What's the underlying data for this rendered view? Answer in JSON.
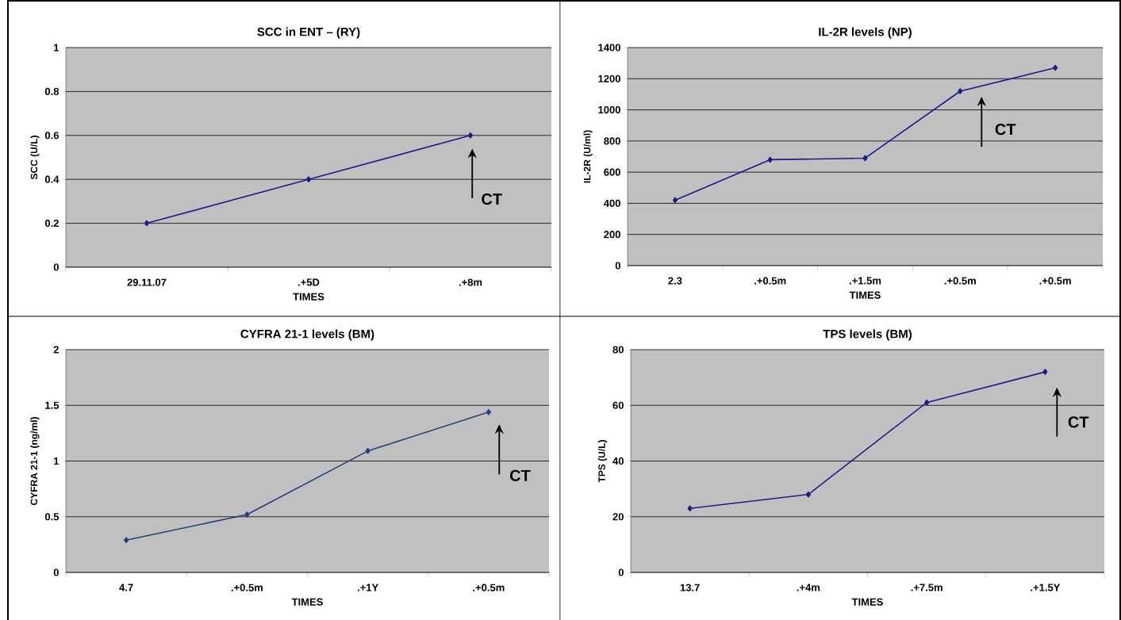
{
  "chart_data": [
    {
      "type": "line",
      "title": "SCC in ENT – (RY)",
      "xlabel": "TIMES",
      "ylabel": "SCC (U/L)",
      "categories": [
        "29.11.07",
        ".+5D",
        ".+8m"
      ],
      "values": [
        0.2,
        0.4,
        0.6
      ],
      "color": "#1c1c8c",
      "ylim": [
        0,
        1
      ],
      "yticks": [
        0,
        0.2,
        0.4,
        0.6,
        0.8,
        1
      ],
      "grid": "y",
      "marker": "diamond",
      "annotations": [
        "CT"
      ]
    },
    {
      "type": "line",
      "title": "IL-2R levels (NP)",
      "xlabel": "TIMES",
      "ylabel": "IL-2R (U/ml)",
      "categories": [
        "2.3",
        ".+0.5m",
        ".+1.5m",
        ".+0.5m",
        ".+0.5m"
      ],
      "values": [
        420,
        680,
        690,
        1120,
        1270
      ],
      "color": "#1c1c8c",
      "ylim": [
        0,
        1400
      ],
      "yticks": [
        0,
        200,
        400,
        600,
        800,
        1000,
        1200,
        1400
      ],
      "grid": "y",
      "marker": "diamond",
      "annotations": [
        "CT"
      ]
    },
    {
      "type": "line",
      "title": "CYFRA 21-1 levels (BM)",
      "xlabel": "TIMES",
      "ylabel": "CYFRA 21-1 (ng/ml)",
      "categories": [
        "4.7",
        ".+0.5m",
        ".+1Y",
        ".+0.5m"
      ],
      "values": [
        0.29,
        0.52,
        1.09,
        1.44
      ],
      "color": "#26407a",
      "ylim": [
        0,
        2
      ],
      "yticks": [
        0,
        0.5,
        1,
        1.5,
        2
      ],
      "grid": "y",
      "marker": "diamond",
      "annotations": [
        "CT"
      ]
    },
    {
      "type": "line",
      "title": "TPS levels (BM)",
      "xlabel": "TIMES",
      "ylabel": "TPS (U/L)",
      "categories": [
        "13.7",
        ".+4m",
        ".+7.5m",
        ".+1.5Y"
      ],
      "values": [
        23,
        28,
        61,
        72
      ],
      "color": "#1c1c8c",
      "ylim": [
        0,
        80
      ],
      "yticks": [
        0,
        20,
        40,
        60,
        80
      ],
      "grid": "y",
      "marker": "diamond",
      "annotations": [
        "CT"
      ]
    }
  ]
}
